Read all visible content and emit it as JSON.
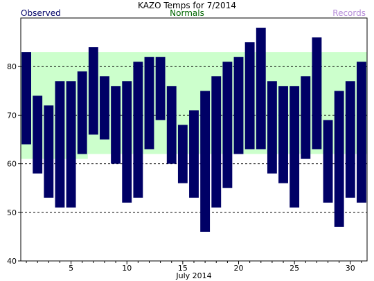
{
  "chart_data": {
    "type": "bar",
    "title": "KAZO Temps for 7/2014",
    "xlabel": "July 2014",
    "ylabel": "",
    "legend": [
      "Observed",
      "Normals",
      "Records"
    ],
    "xlim": [
      0.5,
      31.5
    ],
    "ylim": [
      40,
      90
    ],
    "xticks": [
      5,
      10,
      15,
      20,
      25,
      30
    ],
    "yticks": [
      40,
      50,
      60,
      70,
      80
    ],
    "gridlines": [
      50,
      60,
      70,
      80
    ],
    "normals": {
      "low": [
        61,
        61,
        61,
        61,
        61,
        61,
        62,
        62,
        62,
        62,
        62,
        62,
        62,
        62,
        62,
        62,
        62,
        62,
        62,
        62,
        62,
        62,
        62,
        62,
        62,
        62,
        62,
        62,
        62,
        62,
        62
      ],
      "high": [
        83,
        83,
        83,
        83,
        83,
        83,
        83,
        83,
        83,
        83,
        83,
        83,
        83,
        83,
        83,
        83,
        83,
        83,
        83,
        83,
        83,
        83,
        83,
        83,
        83,
        83,
        83,
        83,
        83,
        83,
        83
      ]
    },
    "series": [
      {
        "name": "Observed",
        "days": [
          1,
          2,
          3,
          4,
          5,
          6,
          7,
          8,
          9,
          10,
          11,
          12,
          13,
          14,
          15,
          16,
          17,
          18,
          19,
          20,
          21,
          22,
          23,
          24,
          25,
          26,
          27,
          28,
          29,
          30,
          31
        ],
        "low": [
          64,
          58,
          53,
          51,
          51,
          62,
          66,
          65,
          60,
          52,
          53,
          63,
          69,
          60,
          56,
          53,
          46,
          51,
          55,
          62,
          63,
          63,
          58,
          56,
          51,
          61,
          63,
          52,
          47,
          53,
          52
        ],
        "high": [
          83,
          74,
          72,
          77,
          77,
          79,
          84,
          78,
          76,
          77,
          81,
          82,
          82,
          76,
          68,
          71,
          75,
          78,
          81,
          82,
          85,
          88,
          77,
          76,
          76,
          78,
          86,
          69,
          75,
          77,
          81
        ]
      }
    ],
    "colors": {
      "observed": "#000066",
      "normals": "#ccffcc",
      "records": "#b48ad8",
      "grid": "#000000"
    }
  }
}
